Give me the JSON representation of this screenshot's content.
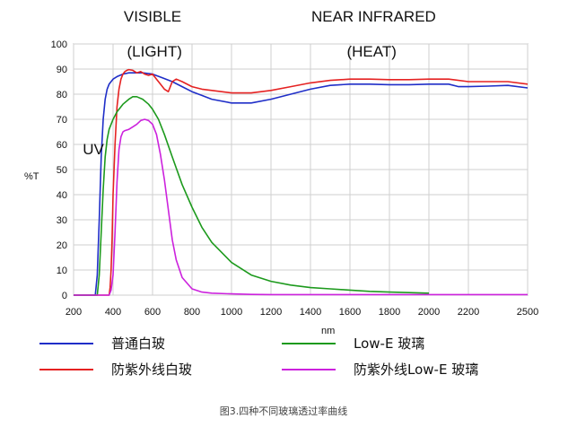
{
  "chart_data": {
    "type": "line",
    "title": "",
    "xlabel": "nm",
    "ylabel": "%T",
    "xlim": [
      200,
      2500
    ],
    "ylim": [
      0,
      100
    ],
    "x_ticks": [
      "200",
      "400",
      "600",
      "800",
      "1000",
      "1200",
      "1400",
      "1600",
      "1800",
      "2000",
      "2200",
      "2500"
    ],
    "y_ticks": [
      "0",
      "10",
      "20",
      "30",
      "40",
      "50",
      "60",
      "70",
      "80",
      "90",
      "100"
    ],
    "grid": true,
    "legend_position": "bottom",
    "annotations": [
      {
        "text": "VISIBLE",
        "x": 600,
        "y": 109
      },
      {
        "text": "(LIGHT)",
        "x": 610,
        "y": 95
      },
      {
        "text": "NEAR INFRARED",
        "x": 1720,
        "y": 109
      },
      {
        "text": "(HEAT)",
        "x": 1710,
        "y": 95
      },
      {
        "text": "UV",
        "x": 300,
        "y": 56
      }
    ],
    "caption": "图3.四种不同玻璃透过率曲线",
    "series": [
      {
        "name": "普通白玻",
        "color": "#1f2ec8",
        "x": [
          200,
          310,
          320,
          330,
          340,
          350,
          360,
          370,
          380,
          400,
          420,
          450,
          480,
          500,
          550,
          600,
          650,
          700,
          750,
          800,
          850,
          900,
          1000,
          1100,
          1200,
          1300,
          1400,
          1500,
          1600,
          1700,
          1800,
          1900,
          2000,
          2100,
          2150,
          2200,
          2300,
          2400,
          2500
        ],
        "y": [
          0,
          0,
          8,
          30,
          55,
          70,
          78,
          82,
          84,
          86,
          87,
          88,
          88.5,
          88.5,
          88.5,
          88,
          86.5,
          85,
          83,
          81,
          79.5,
          78,
          76.5,
          76.5,
          78,
          80,
          82,
          83.5,
          84,
          84,
          83.8,
          83.8,
          84,
          84,
          83,
          83,
          83.2,
          83.5,
          82.5
        ]
      },
      {
        "name": "防紫外线白玻",
        "color": "#e52222",
        "x": [
          200,
          380,
          385,
          390,
          395,
          400,
          410,
          420,
          430,
          440,
          450,
          460,
          470,
          480,
          500,
          520,
          540,
          560,
          580,
          600,
          620,
          640,
          660,
          680,
          700,
          720,
          750,
          800,
          850,
          900,
          1000,
          1100,
          1200,
          1300,
          1400,
          1500,
          1600,
          1700,
          1800,
          1900,
          2000,
          2100,
          2200,
          2300,
          2400,
          2500
        ],
        "y": [
          0,
          0,
          3,
          10,
          22,
          40,
          60,
          75,
          82,
          86,
          88,
          89,
          89.5,
          89.8,
          89.5,
          88.5,
          89,
          88,
          87.5,
          88,
          86,
          84,
          82,
          81,
          85,
          86,
          85,
          83,
          82,
          81.5,
          80.5,
          80.5,
          81.5,
          83,
          84.5,
          85.5,
          86,
          86,
          85.8,
          85.8,
          86,
          86,
          85,
          85,
          85,
          84
        ]
      },
      {
        "name": "Low-E 玻璃",
        "color": "#1d9a1d",
        "x": [
          200,
          320,
          330,
          340,
          350,
          360,
          370,
          380,
          400,
          420,
          450,
          480,
          500,
          520,
          550,
          580,
          600,
          630,
          660,
          700,
          750,
          800,
          850,
          900,
          1000,
          1100,
          1200,
          1300,
          1400,
          1500,
          1600,
          1700,
          1800,
          1900,
          2000
        ],
        "y": [
          0,
          0,
          8,
          25,
          42,
          55,
          62,
          66,
          70,
          73,
          76,
          78,
          79,
          79,
          78,
          76,
          74,
          70,
          64,
          55,
          44,
          35,
          27,
          21,
          13,
          8,
          5.5,
          4,
          3,
          2.5,
          2,
          1.5,
          1.2,
          1,
          0.8
        ]
      },
      {
        "name": "防紫外线Low-E 玻璃",
        "color": "#cc22dd",
        "x": [
          200,
          380,
          390,
          400,
          410,
          420,
          430,
          440,
          450,
          460,
          480,
          500,
          520,
          540,
          560,
          580,
          600,
          620,
          640,
          660,
          680,
          700,
          720,
          750,
          800,
          850,
          900,
          1000,
          1100,
          1200,
          1500,
          2000,
          2500
        ],
        "y": [
          0,
          0,
          2,
          8,
          25,
          45,
          58,
          63,
          65,
          65.5,
          66,
          67,
          68,
          69.5,
          70,
          69.5,
          68,
          64,
          56,
          46,
          34,
          22,
          14,
          7,
          2.5,
          1.2,
          0.8,
          0.5,
          0.3,
          0.2,
          0.2,
          0.2,
          0.2
        ]
      }
    ]
  }
}
